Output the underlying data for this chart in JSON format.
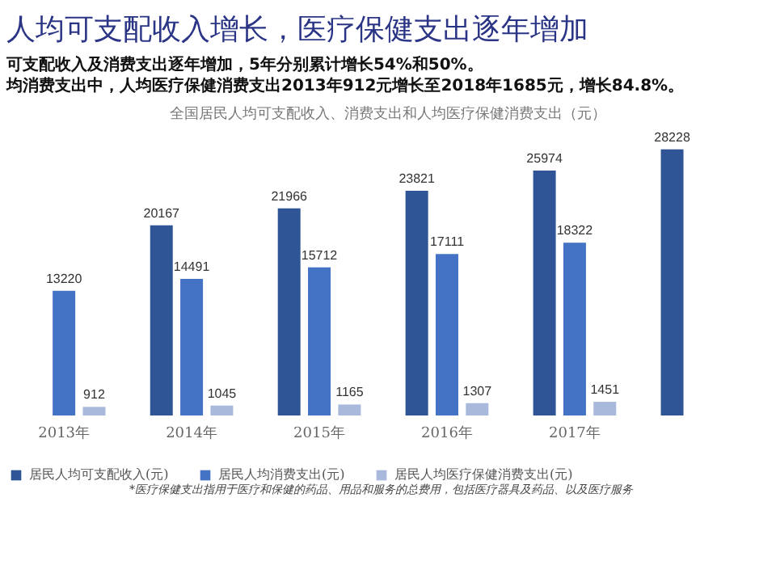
{
  "chart_data": {
    "type": "bar",
    "title": "人均可支配收入增长，医疗保健支出逐年增加",
    "subtitle": "可支配收入及消费支出逐年增加，5年分别累计增长54%和50%。",
    "annotations": [
      "均消费支出中，人均医疗保健消费支出2013年912元增长至2018年1685元，增长84.8%。",
      "全国居民人均可支配收入、消费支出和人均医疗保健消费支出（元）",
      "*医疗保健支出指用于医疗和保健的药品、用品和服务的总费用，包括医疗器具及药品、以及医疗服务"
    ],
    "categories": [
      "2013年",
      "2014年",
      "2015年",
      "2016年",
      "2017年",
      null
    ],
    "series": [
      {
        "name": "居民人均可支配收入(元)",
        "color": "#2f5597",
        "values": [
          null,
          20167,
          21966,
          23821,
          25974,
          28228
        ]
      },
      {
        "name": "居民人均消费支出(元)",
        "color": "#4472c4",
        "values": [
          13220,
          14491,
          15712,
          17111,
          18322,
          null
        ]
      },
      {
        "name": "居民人均医疗保健消费支出(元)",
        "color": "#a9b9dc",
        "values": [
          912,
          1045,
          1165,
          1307,
          1451,
          null
        ]
      }
    ],
    "tick_labels": "x",
    "data_labels": true,
    "legend": "bottom"
  }
}
